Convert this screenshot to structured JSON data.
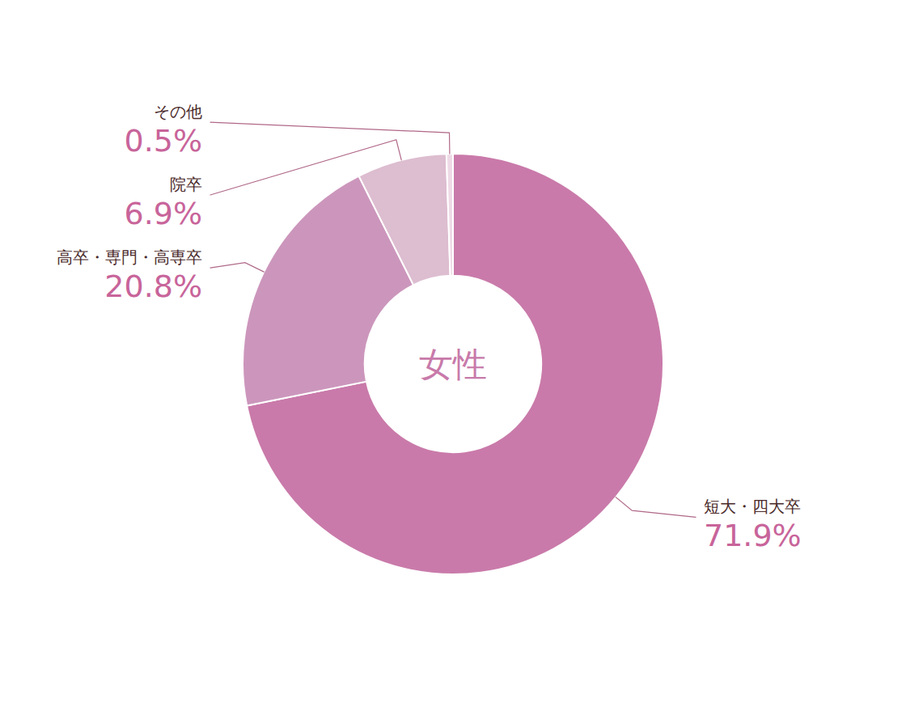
{
  "chart_data": {
    "type": "donut",
    "annotations": [
      "女性"
    ],
    "categories": [
      "短大・四大卒",
      "高卒・専門・高専卒",
      "院卒",
      "その他"
    ],
    "values": [
      71.9,
      20.8,
      6.9,
      0.5
    ],
    "value_labels": [
      "71.9%",
      "20.8%",
      "6.9%",
      "0.5%"
    ],
    "colors": [
      "#c97aaa",
      "#cc96bc",
      "#ddbdd0",
      "#eedae6"
    ],
    "data_labels": true
  }
}
